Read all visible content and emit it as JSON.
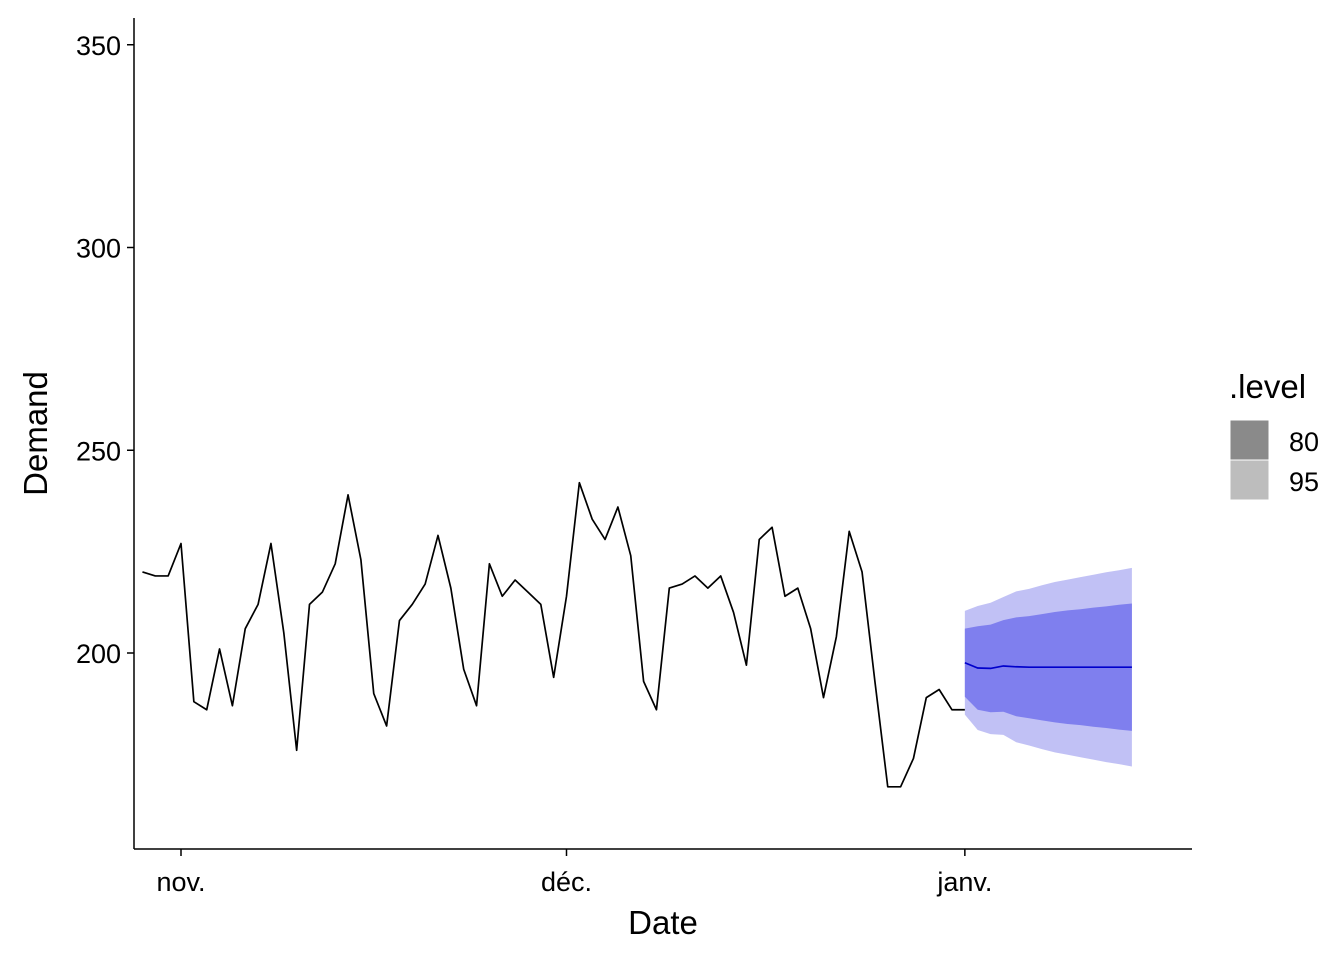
{
  "chart_data": {
    "type": "line",
    "title": "",
    "xlabel": "Date",
    "ylabel": "Demand",
    "ylim": [
      150,
      358
    ],
    "xlim": [
      -3.7,
      78.5
    ],
    "y_ticks": [
      200,
      250,
      300,
      350
    ],
    "x_ticks": [
      {
        "label": "nov.",
        "x": 0
      },
      {
        "label": "déc.",
        "x": 30
      },
      {
        "label": "janv.",
        "x": 61
      }
    ],
    "grid": false,
    "series": [
      {
        "name": "Demand",
        "color": "#000000",
        "x_start": -3,
        "values": [
          220,
          219,
          219,
          227,
          188,
          186,
          201,
          187,
          206,
          212,
          227,
          205,
          176,
          212,
          215,
          222,
          239,
          223,
          190,
          182,
          208,
          212,
          217,
          229,
          216,
          196,
          187,
          222,
          214,
          218,
          215,
          212,
          194,
          214,
          242,
          233,
          228,
          236,
          224,
          193,
          186,
          216,
          217,
          219,
          216,
          219,
          210,
          197,
          228,
          231,
          214,
          216,
          206,
          189,
          204,
          230,
          220,
          193,
          167,
          167,
          174,
          189,
          191,
          186,
          186
        ]
      }
    ],
    "forecast": {
      "color": "#0000cc",
      "x_start": 61,
      "mean": [
        197.6,
        196.3,
        196.2,
        196.8,
        196.6,
        196.5,
        196.5,
        196.5,
        196.5,
        196.5,
        196.5,
        196.5,
        196.5,
        196.5
      ],
      "pi80_lower": [
        189.2,
        186.0,
        185.4,
        185.5,
        184.4,
        183.9,
        183.4,
        182.9,
        182.5,
        182.2,
        181.8,
        181.5,
        181.1,
        180.8
      ],
      "pi80_upper": [
        206.0,
        206.6,
        207.0,
        208.1,
        208.8,
        209.1,
        209.6,
        210.1,
        210.5,
        210.8,
        211.2,
        211.5,
        211.9,
        212.2
      ],
      "pi95_lower": [
        184.8,
        181.0,
        180.0,
        179.8,
        178.0,
        177.2,
        176.3,
        175.5,
        174.9,
        174.3,
        173.7,
        173.1,
        172.6,
        172.0
      ],
      "pi95_upper": [
        210.4,
        211.6,
        212.4,
        213.8,
        215.2,
        215.8,
        216.7,
        217.5,
        218.1,
        218.7,
        219.3,
        219.9,
        220.4,
        221.0
      ],
      "band80_color": "#7f7fee",
      "band95_color": "#c1c1f5"
    },
    "legend": {
      "title": ".level",
      "position": "right",
      "entries": [
        {
          "label": "80",
          "color": "#8a8a8a"
        },
        {
          "label": "95",
          "color": "#bdbdbd"
        }
      ]
    }
  }
}
